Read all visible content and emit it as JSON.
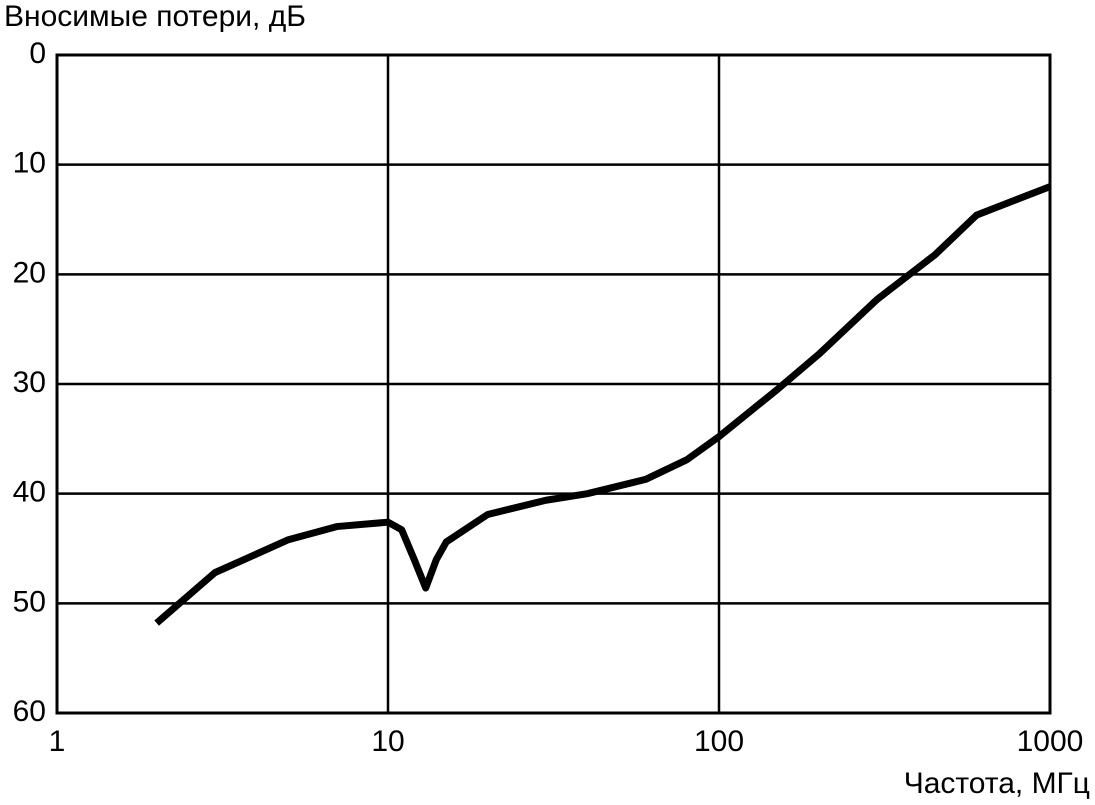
{
  "chart_data": {
    "type": "line",
    "title": "Вносимые потери, дБ",
    "x_label": "Частота, МГц",
    "x": [
      2,
      3,
      5,
      7,
      10,
      11,
      12,
      13,
      14,
      15,
      20,
      30,
      40,
      60,
      80,
      100,
      150,
      200,
      300,
      450,
      600,
      1000
    ],
    "values": [
      51.8,
      47.2,
      44.2,
      43,
      42.6,
      43.3,
      46,
      48.6,
      46,
      44.4,
      41.9,
      40.6,
      40,
      38.7,
      36.9,
      34.8,
      30.5,
      27.3,
      22.3,
      18.2,
      14.6,
      12
    ],
    "color": "#000000",
    "xscale": "log",
    "xlim": [
      1,
      1000
    ],
    "xticks": [
      1,
      10,
      100,
      1000
    ],
    "ylim": [
      0,
      60
    ],
    "yticks": [
      0,
      10,
      20,
      30,
      40,
      50,
      60
    ],
    "y_inverted": true,
    "grid": true
  }
}
